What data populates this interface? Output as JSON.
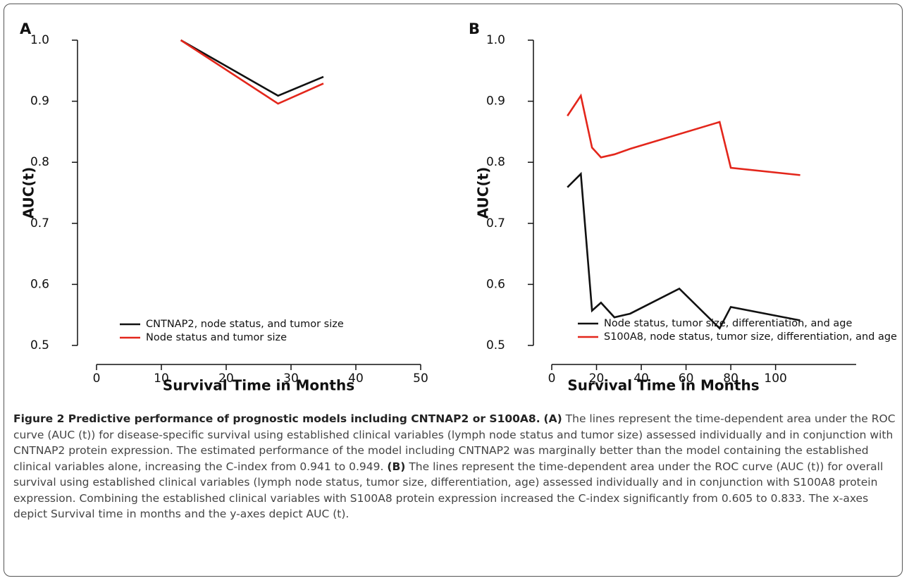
{
  "chart_data": [
    {
      "type": "line",
      "panel_label": "A",
      "x_label": "Survival Time in Months",
      "y_label": "AUC(t)",
      "xlim": [
        0,
        50
      ],
      "xticks": [
        0,
        10,
        20,
        30,
        40,
        50
      ],
      "ylim": [
        0.5,
        1
      ],
      "yticks": [
        0.5,
        0.6,
        0.7,
        0.8,
        0.9,
        {
          "value": 1,
          "label": "1.0"
        }
      ],
      "legend": "lower-left",
      "series": [
        {
          "name": "CNTNAP2, node status, and tumor size",
          "color": "#111111",
          "x": [
            13,
            28,
            35
          ],
          "values": [
            1.0,
            0.909,
            0.94
          ]
        },
        {
          "name": "Node status and tumor size",
          "color": "#e3261b",
          "x": [
            13,
            28,
            35
          ],
          "values": [
            1.0,
            0.896,
            0.929
          ]
        }
      ]
    },
    {
      "type": "line",
      "panel_label": "B",
      "x_label": "Survival Time in Months",
      "y_label": "AUC(t)",
      "xlim": [
        0,
        136
      ],
      "xticks": [
        0,
        20,
        40,
        60,
        80,
        100
      ],
      "ylim": [
        0.5,
        1
      ],
      "yticks": [
        0.5,
        0.6,
        0.7,
        0.8,
        0.9,
        {
          "value": 1,
          "label": "1.0"
        }
      ],
      "legend": "lower-right",
      "series": [
        {
          "name": "Node status, tumor size, differentiation, and age",
          "color": "#111111",
          "x": [
            7,
            13,
            18,
            22,
            28,
            35,
            57,
            75,
            80,
            111
          ],
          "values": [
            0.759,
            0.781,
            0.557,
            0.57,
            0.546,
            0.552,
            0.593,
            0.528,
            0.563,
            0.541
          ]
        },
        {
          "name": "S100A8, node status, tumor size, differentiation, and age",
          "color": "#e3261b",
          "x": [
            7,
            13,
            18,
            22,
            28,
            35,
            75,
            80,
            111
          ],
          "values": [
            0.876,
            0.909,
            0.824,
            0.808,
            0.813,
            0.822,
            0.866,
            0.791,
            0.779
          ]
        }
      ]
    }
  ],
  "caption": {
    "title": "Figure 2 Predictive performance of prognostic models including CNTNAP2 or S100A8.",
    "parts": [
      {
        "label": "(A)",
        "text": "The lines represent the time-dependent area under the ROC curve (AUC (t)) for disease-specific survival using established clinical variables (lymph node status and tumor size) assessed individually and in conjunction with CNTNAP2 protein expression. The estimated performance of the model including CNTNAP2 was marginally better than the model containing the established clinical variables alone, increasing the C-index from 0.941 to 0.949."
      },
      {
        "label": "(B)",
        "text": "The lines represent the time-dependent area under the ROC curve (AUC (t)) for overall survival using established clinical variables (lymph node status, tumor size, differentiation, age) assessed individually and in conjunction with S100A8 protein expression. Combining the established clinical variables with S100A8 protein expression increased the C-index significantly from 0.605 to 0.833. The x-axes depict Survival time in months and the y-axes depict AUC (t)."
      }
    ]
  }
}
